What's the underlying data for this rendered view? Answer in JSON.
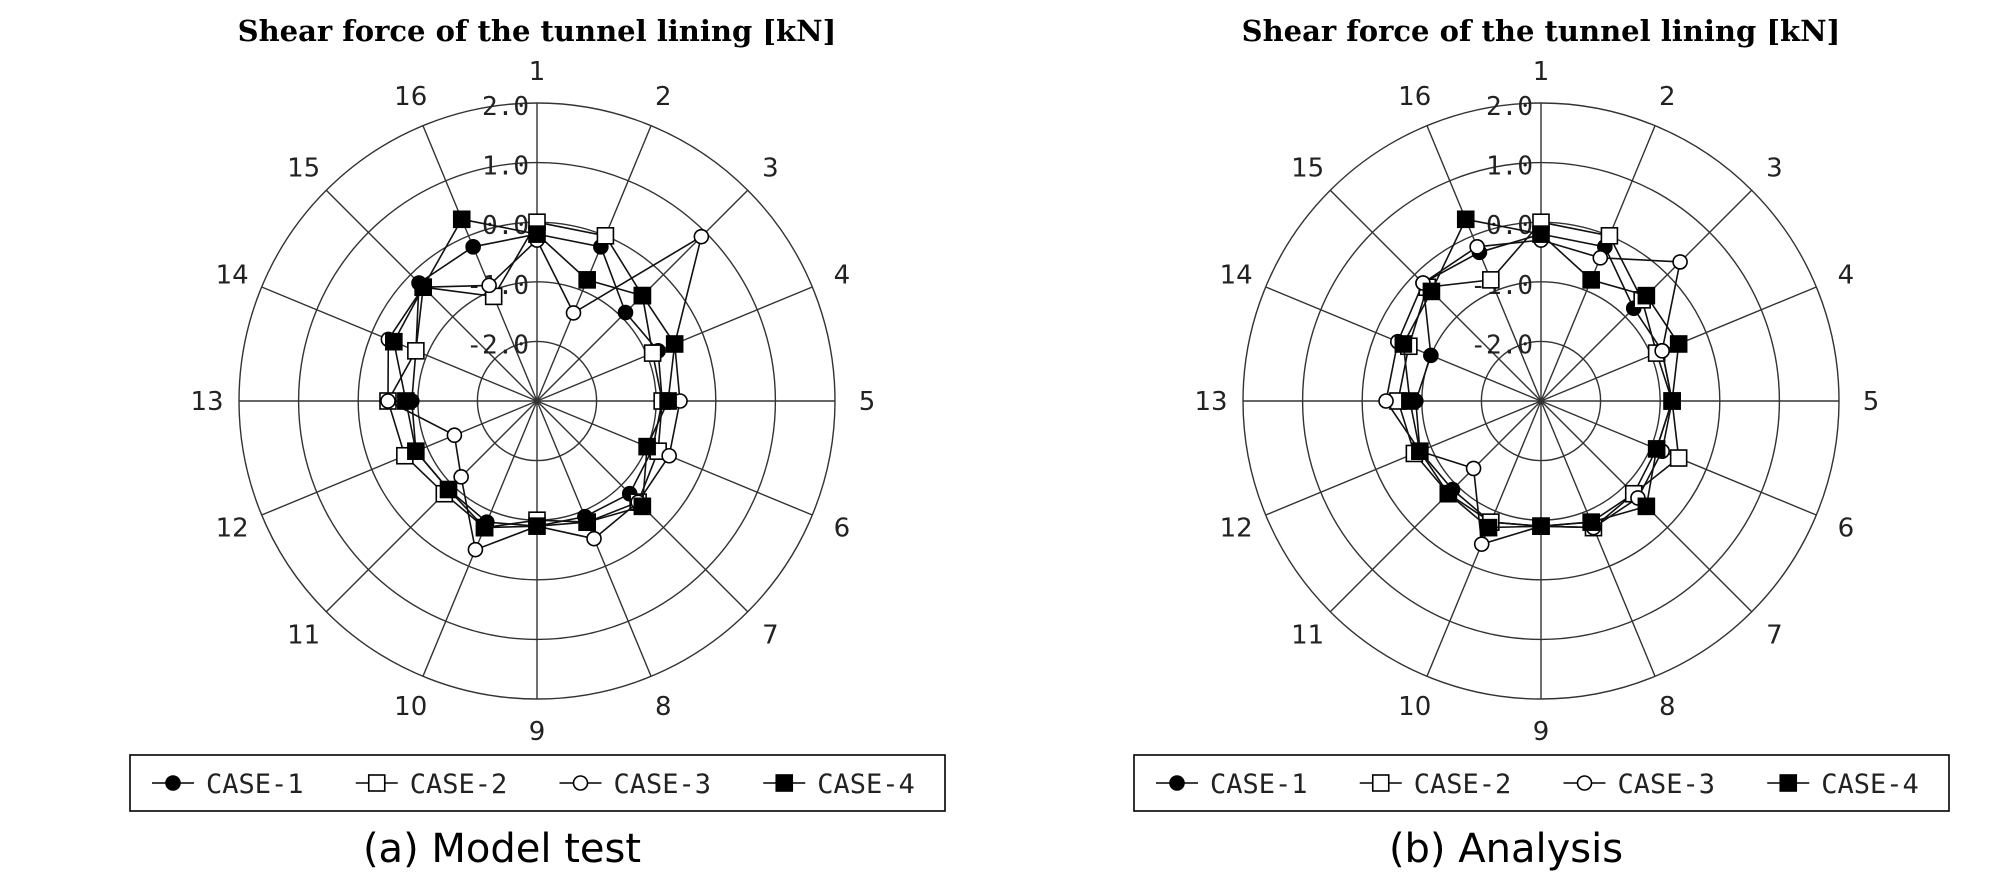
{
  "chart_data": [
    {
      "type": "radar",
      "title": "Shear force of the tunnel lining [kN]",
      "caption": "(a) Model test",
      "categories": [
        "1",
        "2",
        "3",
        "4",
        "5",
        "6",
        "7",
        "8",
        "9",
        "10",
        "11",
        "12",
        "13",
        "14",
        "15",
        "16"
      ],
      "rlim": [
        -3.0,
        2.0
      ],
      "rticks": [
        "2.0",
        "1.0",
        "0.0",
        "-1.0",
        "-2.0"
      ],
      "grid": true,
      "legend_position": "bottom",
      "series": [
        {
          "name": "CASE-1",
          "marker": "filled-circle",
          "values": [
            -0.2,
            -0.2,
            -0.9,
            -0.8,
            -0.9,
            -0.9,
            -0.8,
            -0.9,
            -0.9,
            -0.8,
            -0.9,
            -0.8,
            -0.9,
            -0.8,
            -0.2,
            -0.2
          ]
        },
        {
          "name": "CASE-2",
          "marker": "open-square",
          "values": [
            0.0,
            0.0,
            -0.5,
            -0.9,
            -0.9,
            -0.8,
            -0.6,
            -0.8,
            -1.0,
            -0.7,
            -0.8,
            -0.6,
            -0.5,
            -0.8,
            -0.3,
            -1.1
          ]
        },
        {
          "name": "CASE-3",
          "marker": "open-circle",
          "values": [
            -0.3,
            -1.4,
            0.9,
            -0.5,
            -0.6,
            -0.6,
            -0.6,
            -0.5,
            -0.9,
            -0.3,
            -1.2,
            -1.5,
            -0.5,
            -0.3,
            -0.3,
            -0.9
          ]
        },
        {
          "name": "CASE-4",
          "marker": "filled-square",
          "values": [
            -0.2,
            -0.8,
            -0.5,
            -0.5,
            -0.8,
            -1.0,
            -0.5,
            -0.8,
            -0.9,
            -0.7,
            -0.9,
            -0.8,
            -0.8,
            -0.4,
            -0.3,
            0.3
          ]
        }
      ]
    },
    {
      "type": "radar",
      "title": "Shear force of the tunnel lining [kN]",
      "caption": "(b) Analysis",
      "categories": [
        "1",
        "2",
        "3",
        "4",
        "5",
        "6",
        "7",
        "8",
        "9",
        "10",
        "11",
        "12",
        "13",
        "14",
        "15",
        "16"
      ],
      "rlim": [
        -3.0,
        2.0
      ],
      "rticks": [
        "2.0",
        "1.0",
        "0.0",
        "-1.0",
        "-2.0"
      ],
      "grid": true,
      "legend_position": "bottom",
      "series": [
        {
          "name": "CASE-1",
          "marker": "filled-circle",
          "values": [
            -0.2,
            -0.2,
            -0.8,
            -0.8,
            -0.8,
            -0.9,
            -0.8,
            -0.8,
            -0.9,
            -0.8,
            -0.9,
            -0.8,
            -0.9,
            -1.0,
            -0.2,
            -0.3
          ]
        },
        {
          "name": "CASE-2",
          "marker": "open-square",
          "values": [
            0.0,
            0.0,
            -0.6,
            -0.9,
            -0.8,
            -0.5,
            -0.8,
            -0.7,
            -0.9,
            -0.8,
            -0.8,
            -0.7,
            -0.6,
            -0.6,
            -0.3,
            -0.8
          ]
        },
        {
          "name": "CASE-3",
          "marker": "open-circle",
          "values": [
            -0.3,
            -0.4,
            0.3,
            -0.8,
            -0.8,
            -0.8,
            -0.7,
            -0.7,
            -0.9,
            -0.4,
            -1.4,
            -0.8,
            -0.4,
            -0.4,
            -0.2,
            -0.2
          ]
        },
        {
          "name": "CASE-4",
          "marker": "filled-square",
          "values": [
            -0.2,
            -0.8,
            -0.5,
            -0.5,
            -0.8,
            -0.9,
            -0.5,
            -0.8,
            -0.9,
            -0.7,
            -0.8,
            -0.8,
            -0.8,
            -0.5,
            -0.4,
            0.3
          ]
        }
      ]
    }
  ]
}
